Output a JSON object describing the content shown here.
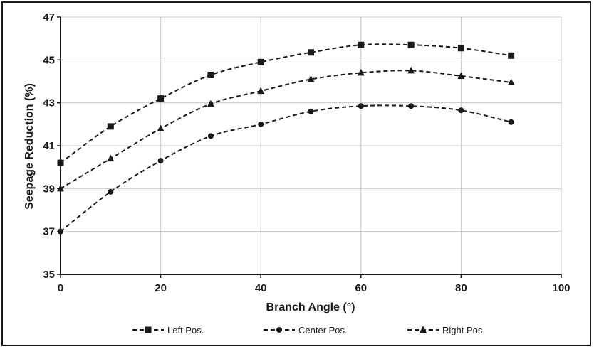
{
  "chart_data": {
    "type": "line",
    "title": "",
    "xlabel": "Branch Angle (°)",
    "ylabel": "Seepage Reduction (%)",
    "xlim": [
      0,
      100
    ],
    "ylim": [
      35,
      47
    ],
    "x_ticks": [
      "0",
      "20",
      "40",
      "60",
      "80",
      "100"
    ],
    "y_ticks": [
      "35",
      "37",
      "39",
      "41",
      "43",
      "45",
      "47"
    ],
    "grid": true,
    "legend_position": "bottom",
    "line_style": "dashed",
    "x": [
      0,
      10,
      20,
      30,
      40,
      50,
      60,
      70,
      80,
      90
    ],
    "series": [
      {
        "name": "Left Pos.",
        "marker": "square",
        "color": "#1a1a1a",
        "values": [
          40.2,
          41.9,
          43.2,
          44.3,
          44.9,
          45.35,
          45.7,
          45.7,
          45.55,
          45.2
        ]
      },
      {
        "name": "Center Pos.",
        "marker": "circle",
        "color": "#1a1a1a",
        "values": [
          37.0,
          38.85,
          40.3,
          41.45,
          42.0,
          42.6,
          42.85,
          42.85,
          42.65,
          42.1
        ]
      },
      {
        "name": "Right Pos.",
        "marker": "triangle",
        "color": "#1a1a1a",
        "values": [
          39.0,
          40.4,
          41.8,
          42.95,
          43.55,
          44.1,
          44.4,
          44.5,
          44.25,
          43.95
        ]
      }
    ]
  }
}
